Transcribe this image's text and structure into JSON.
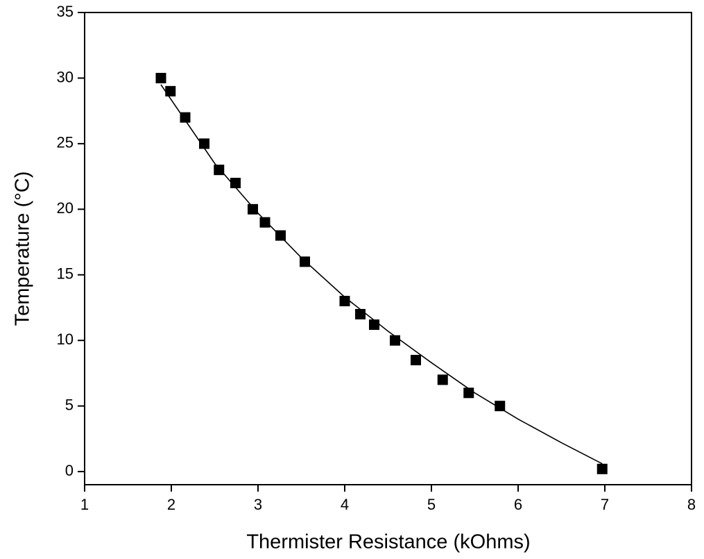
{
  "chart_data": {
    "type": "scatter",
    "xlabel": "Thermister Resistance (kOhms)",
    "ylabel": "Temperature (°C)",
    "xlim": [
      1,
      8
    ],
    "xticks": [
      1,
      2,
      3,
      4,
      5,
      6,
      7,
      8
    ],
    "ylim": [
      -1,
      35
    ],
    "yticks": [
      0,
      5,
      10,
      15,
      20,
      25,
      30,
      35
    ],
    "series": [
      {
        "color": "#000000",
        "marker": "square",
        "x": [
          1.88,
          1.99,
          2.16,
          2.38,
          2.55,
          2.74,
          2.94,
          3.08,
          3.26,
          3.54,
          4.0,
          4.18,
          4.34,
          4.58,
          4.82,
          5.13,
          5.43,
          5.79,
          6.97
        ],
        "values": [
          30,
          29,
          27,
          25,
          23,
          22,
          20,
          19,
          18,
          16,
          13,
          12,
          11.2,
          10,
          8.5,
          7,
          6,
          5,
          0.2
        ]
      },
      {
        "color": "#000000",
        "marker": "line",
        "x": [
          1.88,
          2.5,
          3,
          3.5,
          4,
          4.5,
          5,
          5.5,
          6,
          6.5,
          6.97
        ],
        "values": [
          29.5,
          23.5,
          19.7,
          16.3,
          13.3,
          10.7,
          8.3,
          6.0,
          4.0,
          2.2,
          0.6
        ]
      }
    ]
  }
}
